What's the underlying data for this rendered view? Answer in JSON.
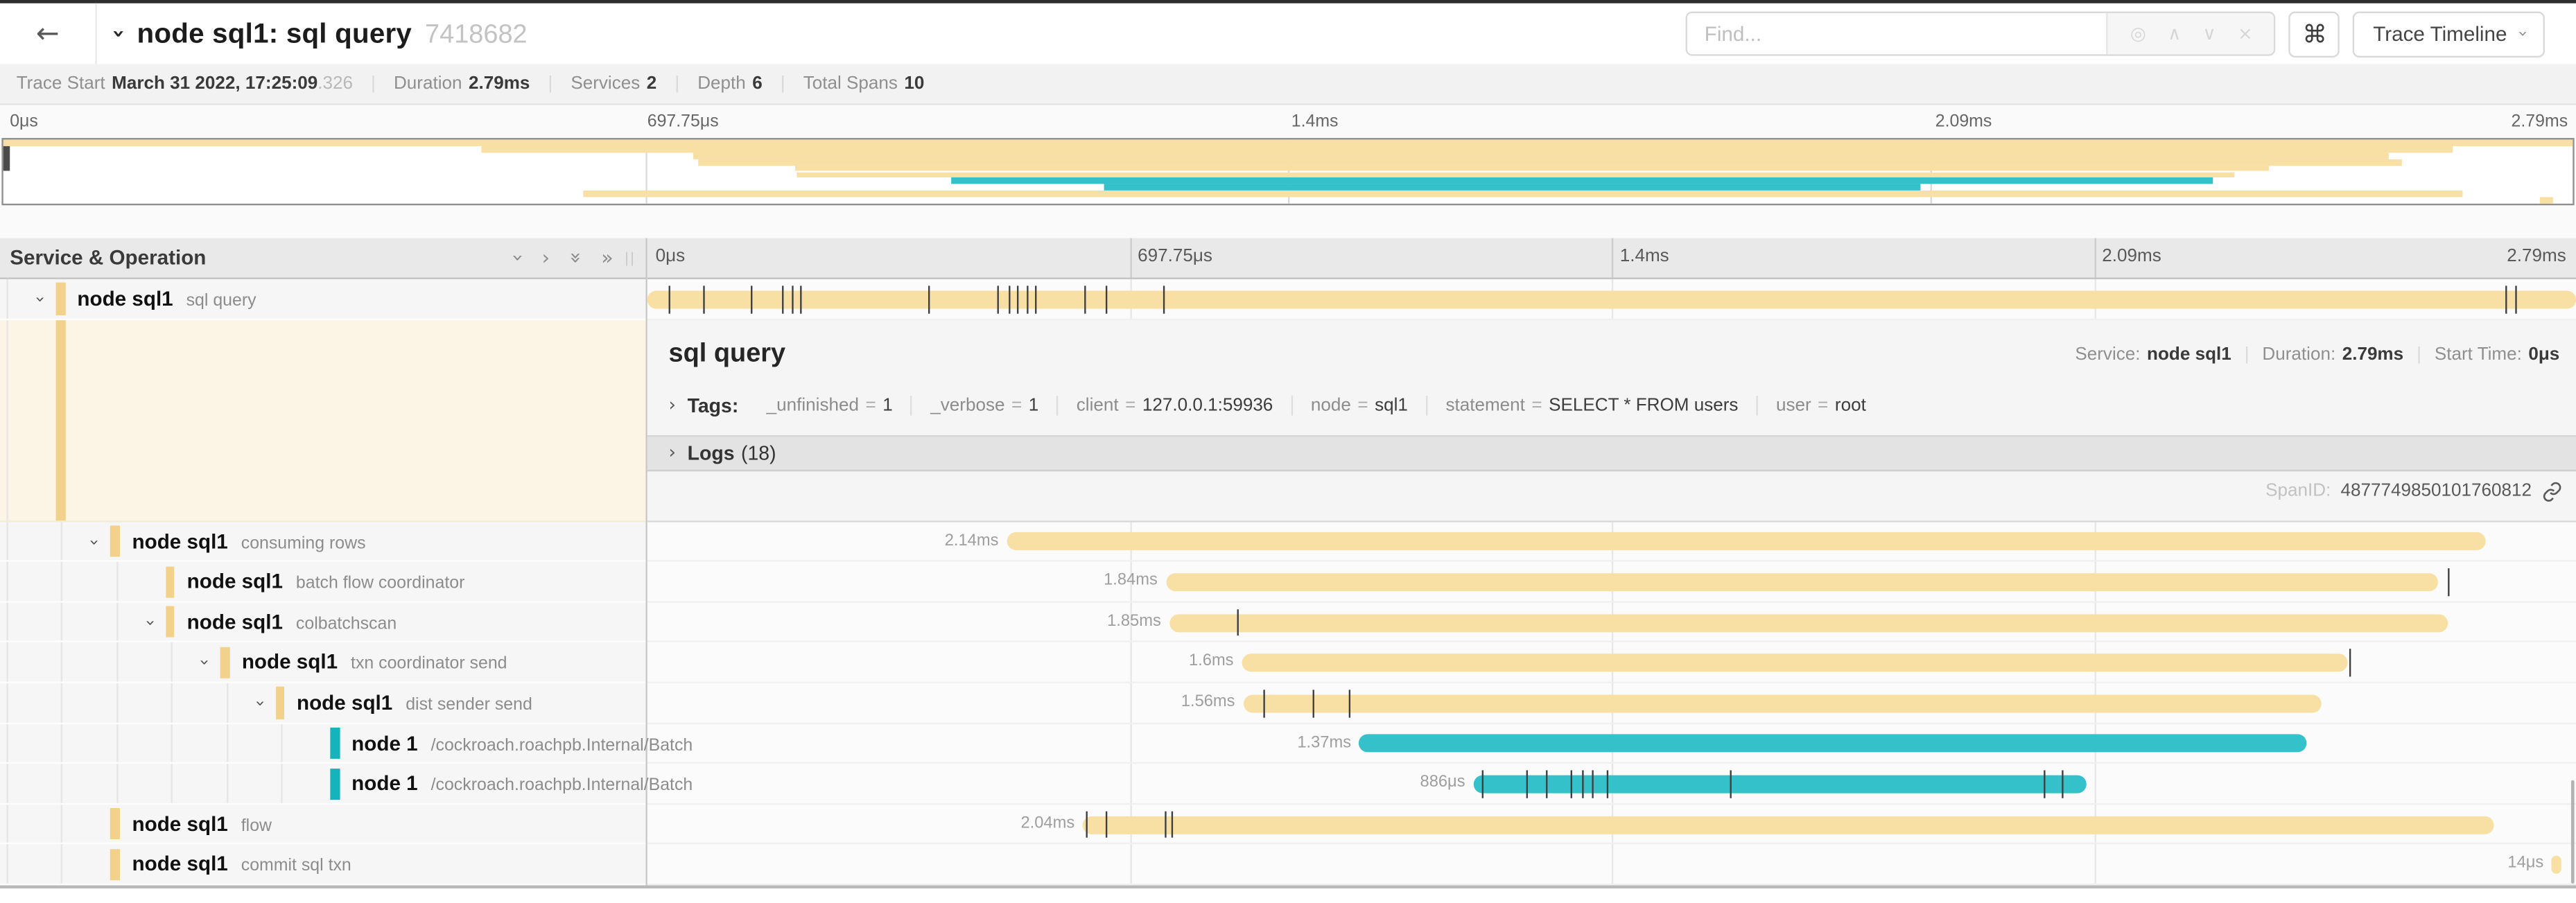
{
  "header": {
    "back_icon": "←",
    "collapse_chevron": "›",
    "title": "node sql1: sql query",
    "trace_id": "7418682"
  },
  "find": {
    "placeholder": "Find...",
    "locate_icon": "◎",
    "prev_icon": "∧",
    "next_icon": "∨",
    "clear_icon": "×",
    "shortcut_icon": "⌘",
    "view_label": "Trace Timeline"
  },
  "trace_meta": [
    {
      "label": "Trace Start",
      "value": "March 31 2022, 17:25:09",
      "muted": ".326"
    },
    {
      "label": "Duration",
      "value": "2.79ms"
    },
    {
      "label": "Services",
      "value": "2"
    },
    {
      "label": "Depth",
      "value": "6"
    },
    {
      "label": "Total Spans",
      "value": "10"
    }
  ],
  "timeline": {
    "total_ms": 2.79,
    "tick_labels": [
      "0μs",
      "697.75μs",
      "1.4ms",
      "2.09ms",
      "2.79ms"
    ],
    "tick_pcts": [
      0,
      25,
      50,
      75,
      100
    ]
  },
  "tree_header": {
    "title": "Service & Operation"
  },
  "colors": {
    "tan_bar": "#f8dfa3",
    "tan_tree": "#f2d28b",
    "teal_bar": "#35c1ca",
    "teal_tree": "#16b3bc",
    "selected_bg": "#fcf5e5"
  },
  "spans": [
    {
      "service": "node sql1",
      "operation": "sql query",
      "level": 0,
      "expanded": true,
      "color": "tan",
      "start_ms": 0,
      "dur_ms": 2.79,
      "label": "",
      "selected": true,
      "log_ticks_ms": [
        0.03,
        0.08,
        0.15,
        0.196,
        0.208,
        0.221,
        0.406,
        0.507,
        0.522,
        0.535,
        0.548,
        0.562,
        0.632,
        0.662,
        0.747,
        2.688,
        2.702
      ]
    },
    {
      "service": "node sql1",
      "operation": "consuming rows",
      "level": 1,
      "expanded": true,
      "color": "tan",
      "start_ms": 0.52,
      "dur_ms": 2.14,
      "label": "2.14ms",
      "log_ticks_ms": []
    },
    {
      "service": "node sql1",
      "operation": "batch flow coordinator",
      "level": 2,
      "expanded": false,
      "color": "tan",
      "start_ms": 0.75,
      "dur_ms": 1.84,
      "label": "1.84ms",
      "log_ticks_ms": [
        2.605
      ]
    },
    {
      "service": "node sql1",
      "operation": "colbatchscan",
      "level": 2,
      "expanded": true,
      "color": "tan",
      "start_ms": 0.755,
      "dur_ms": 1.85,
      "label": "1.85ms",
      "log_ticks_ms": [
        0.853
      ]
    },
    {
      "service": "node sql1",
      "operation": "txn coordinator send",
      "level": 3,
      "expanded": true,
      "color": "tan",
      "start_ms": 0.86,
      "dur_ms": 1.6,
      "label": "1.6ms",
      "log_ticks_ms": [
        2.462
      ]
    },
    {
      "service": "node sql1",
      "operation": "dist sender send",
      "level": 4,
      "expanded": true,
      "color": "tan",
      "start_ms": 0.862,
      "dur_ms": 1.56,
      "label": "1.56ms",
      "log_ticks_ms": [
        0.892,
        0.963,
        1.014
      ]
    },
    {
      "service": "node 1",
      "operation": "/cockroach.roachpb.Internal/Batch",
      "level": 5,
      "expanded": false,
      "color": "teal",
      "start_ms": 1.03,
      "dur_ms": 1.37,
      "label": "1.37ms",
      "log_ticks_ms": []
    },
    {
      "service": "node 1",
      "operation": "/cockroach.roachpb.Internal/Batch",
      "level": 5,
      "expanded": false,
      "color": "teal",
      "start_ms": 1.195,
      "dur_ms": 0.886,
      "label": "886μs",
      "log_ticks_ms": [
        1.208,
        1.272,
        1.301,
        1.336,
        1.352,
        1.367,
        1.387,
        1.565,
        2.02,
        2.046
      ]
    },
    {
      "service": "node sql1",
      "operation": "flow",
      "level": 1,
      "expanded": false,
      "color": "tan",
      "start_ms": 0.63,
      "dur_ms": 2.04,
      "label": "2.04ms",
      "log_ticks_ms": [
        0.635,
        0.663,
        0.749,
        0.757
      ]
    },
    {
      "service": "node sql1",
      "operation": "commit sql txn",
      "level": 1,
      "expanded": false,
      "color": "tan",
      "start_ms": 2.755,
      "dur_ms": 0.014,
      "label": "14μs",
      "log_ticks_ms": []
    }
  ],
  "detail": {
    "title": "sql query",
    "service_label": "Service:",
    "service": "node sql1",
    "duration_label": "Duration:",
    "duration": "2.79ms",
    "start_label": "Start Time:",
    "start": "0μs",
    "tags_label": "Tags:",
    "tags": [
      {
        "key": "_unfinished",
        "value": "1"
      },
      {
        "key": "_verbose",
        "value": "1"
      },
      {
        "key": "client",
        "value": "127.0.0.1:59936"
      },
      {
        "key": "node",
        "value": "sql1"
      },
      {
        "key": "statement",
        "value": "SELECT * FROM users"
      },
      {
        "key": "user",
        "value": "root"
      }
    ],
    "logs_label": "Logs",
    "logs_count": "(18)",
    "spanid_label": "SpanID:",
    "spanid": "4877749850101760812"
  }
}
